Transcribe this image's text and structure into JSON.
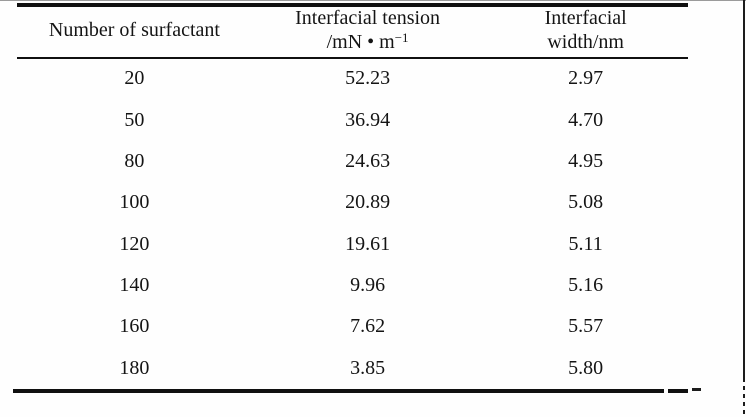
{
  "table": {
    "header": {
      "col1": {
        "line1": "Number of surfactant"
      },
      "col2": {
        "line1": "Interfacial tension",
        "line2_base": "/mN • m",
        "line2_sup": "−1"
      },
      "col3": {
        "line1": "Interfacial",
        "line2": "width/nm"
      }
    },
    "rows": [
      {
        "surfactant": "20",
        "tension": "52.23",
        "width": "2.97"
      },
      {
        "surfactant": "50",
        "tension": "36.94",
        "width": "4.70"
      },
      {
        "surfactant": "80",
        "tension": "24.63",
        "width": "4.95"
      },
      {
        "surfactant": "100",
        "tension": "20.89",
        "width": "5.08"
      },
      {
        "surfactant": "120",
        "tension": "19.61",
        "width": "5.11"
      },
      {
        "surfactant": "140",
        "tension": "9.96",
        "width": "5.16"
      },
      {
        "surfactant": "160",
        "tension": "7.62",
        "width": "5.57"
      },
      {
        "surfactant": "180",
        "tension": "3.85",
        "width": "5.80"
      }
    ]
  },
  "colors": {
    "text": "#141414",
    "rule": "#101010",
    "background": "#fefefe"
  },
  "chart_data": {
    "type": "table",
    "columns": [
      "Number of surfactant",
      "Interfacial tension /mN·m⁻¹",
      "Interfacial width/nm"
    ],
    "rows": [
      [
        20,
        52.23,
        2.97
      ],
      [
        50,
        36.94,
        4.7
      ],
      [
        80,
        24.63,
        4.95
      ],
      [
        100,
        20.89,
        5.08
      ],
      [
        120,
        19.61,
        5.11
      ],
      [
        140,
        9.96,
        5.16
      ],
      [
        160,
        7.62,
        5.57
      ],
      [
        180,
        3.85,
        5.8
      ]
    ]
  }
}
